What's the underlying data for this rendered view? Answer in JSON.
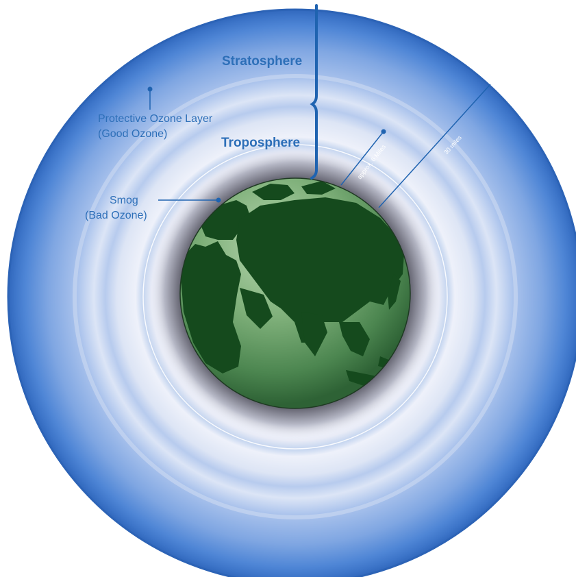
{
  "labels": {
    "stratosphere": "Stratosphere",
    "troposphere": "Troposphere",
    "ozone_line1": "Protective Ozone Layer",
    "ozone_line2": "(Good Ozone)",
    "smog_line1": "Smog",
    "smog_line2": "(Bad Ozone)",
    "approx_6_miles": "approx. 6 Miles",
    "thirty_miles": "30 miles"
  },
  "colors": {
    "label_text": "#2d6fb8",
    "leader_line": "#1f63b0",
    "outer_ring": "#3f7fd0",
    "inner_halo": "#eef0f8",
    "globe_ocean": "#6fa46f",
    "globe_land": "#144a1c"
  }
}
